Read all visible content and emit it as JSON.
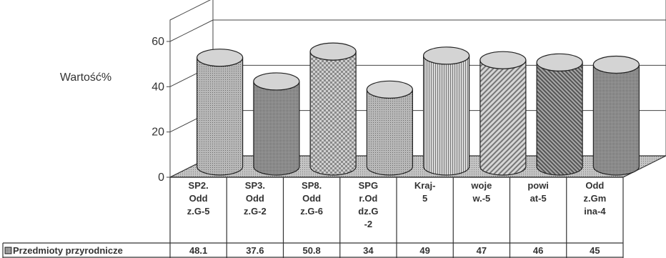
{
  "chart_data": {
    "type": "bar",
    "style": "3d-cylinder",
    "ylabel": "Wartość%",
    "ylim": [
      0,
      60
    ],
    "yticks": [
      "0",
      "20",
      "40",
      "60"
    ],
    "grid": true,
    "categories": [
      [
        "SP2.",
        "Odd",
        "z.G-5"
      ],
      [
        "SP3.",
        "Odd",
        "z.G-2"
      ],
      [
        "SP8.",
        "Odd",
        "z.G-6"
      ],
      [
        "SPG",
        "r.Od",
        "dz.G",
        "-2"
      ],
      [
        "Kraj-",
        "5"
      ],
      [
        "woje",
        "w.-5"
      ],
      [
        "powi",
        "at-5"
      ],
      [
        "Odd",
        "z.Gm",
        "ina-4"
      ]
    ],
    "series": [
      {
        "name": "Przedmioty przyrodnicze",
        "values": [
          48.1,
          37.6,
          50.8,
          34,
          49,
          47,
          46,
          45
        ],
        "value_labels": [
          "48.1",
          "37.6",
          "50.8",
          "34",
          "49",
          "47",
          "46",
          "45"
        ]
      }
    ],
    "legend": "data-table-bottom",
    "colors": {
      "bar_fill": "#a9a9a9",
      "bar_top": "#d4d4d4",
      "floor": "#bdbdbd",
      "grid": "#444444"
    }
  }
}
